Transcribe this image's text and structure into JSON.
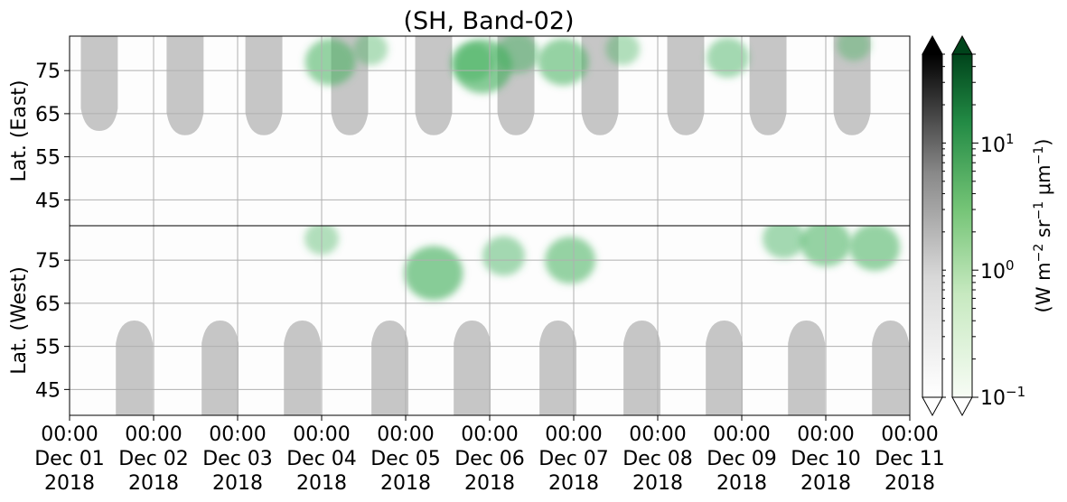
{
  "chart_data": {
    "type": "heatmap",
    "title": "(SH, Band-02)",
    "panels": [
      {
        "name": "east",
        "ylabel": "Lat. (East)",
        "yticks": [
          45,
          55,
          65,
          75
        ],
        "ylim": [
          39,
          83
        ]
      },
      {
        "name": "west",
        "ylabel": "Lat. (West)",
        "yticks": [
          75,
          65,
          55,
          45
        ],
        "ylim": [
          83,
          39
        ]
      }
    ],
    "xticks": [
      {
        "time": "00:00",
        "date": "Dec 01",
        "year": "2018"
      },
      {
        "time": "00:00",
        "date": "Dec 02",
        "year": "2018"
      },
      {
        "time": "00:00",
        "date": "Dec 03",
        "year": "2018"
      },
      {
        "time": "00:00",
        "date": "Dec 04",
        "year": "2018"
      },
      {
        "time": "00:00",
        "date": "Dec 05",
        "year": "2018"
      },
      {
        "time": "00:00",
        "date": "Dec 06",
        "year": "2018"
      },
      {
        "time": "00:00",
        "date": "Dec 07",
        "year": "2018"
      },
      {
        "time": "00:00",
        "date": "Dec 08",
        "year": "2018"
      },
      {
        "time": "00:00",
        "date": "Dec 09",
        "year": "2018"
      },
      {
        "time": "00:00",
        "date": "Dec 10",
        "year": "2018"
      },
      {
        "time": "00:00",
        "date": "Dec 11",
        "year": "2018"
      }
    ],
    "xlim": [
      "2018-12-01 00:00",
      "2018-12-11 00:00"
    ],
    "grid": true,
    "sunlit_gaps": {
      "east": [
        {
          "center": "2018-12-01 08:30",
          "min_lat": 61
        },
        {
          "center": "2018-12-02 09:00",
          "min_lat": 60
        },
        {
          "center": "2018-12-03 07:30",
          "min_lat": 60
        },
        {
          "center": "2018-12-04 08:00",
          "min_lat": 60
        },
        {
          "center": "2018-12-05 08:00",
          "min_lat": 60
        },
        {
          "center": "2018-12-06 07:30",
          "min_lat": 60
        },
        {
          "center": "2018-12-07 07:30",
          "min_lat": 60
        },
        {
          "center": "2018-12-08 08:00",
          "min_lat": 60
        },
        {
          "center": "2018-12-09 07:30",
          "min_lat": 60
        },
        {
          "center": "2018-12-10 07:30",
          "min_lat": 60
        }
      ],
      "west": [
        {
          "center": "2018-12-01 18:30",
          "min_lat": 61
        },
        {
          "center": "2018-12-02 19:00",
          "min_lat": 61
        },
        {
          "center": "2018-12-03 18:30",
          "min_lat": 61
        },
        {
          "center": "2018-12-04 19:30",
          "min_lat": 61
        },
        {
          "center": "2018-12-05 19:00",
          "min_lat": 61
        },
        {
          "center": "2018-12-06 19:30",
          "min_lat": 61
        },
        {
          "center": "2018-12-07 19:30",
          "min_lat": 61
        },
        {
          "center": "2018-12-08 19:00",
          "min_lat": 61
        },
        {
          "center": "2018-12-09 18:30",
          "min_lat": 61
        },
        {
          "center": "2018-12-10 18:30",
          "min_lat": 61
        }
      ]
    },
    "aurora_patches": [
      {
        "panel": "east",
        "time": "2018-12-04 02:30",
        "lat": 77,
        "intensity": 2.0
      },
      {
        "panel": "east",
        "time": "2018-12-04 14:00",
        "lat": 80,
        "intensity": 1.0
      },
      {
        "panel": "east",
        "time": "2018-12-05 19:00",
        "lat": 77,
        "intensity": 1.5
      },
      {
        "panel": "east",
        "time": "2018-12-05 22:00",
        "lat": 76,
        "intensity": 2.5
      },
      {
        "panel": "east",
        "time": "2018-12-06 08:00",
        "lat": 79,
        "intensity": 1.5
      },
      {
        "panel": "east",
        "time": "2018-12-06 21:00",
        "lat": 77,
        "intensity": 2.0
      },
      {
        "panel": "east",
        "time": "2018-12-07 14:00",
        "lat": 80,
        "intensity": 1.0
      },
      {
        "panel": "east",
        "time": "2018-12-08 20:00",
        "lat": 78,
        "intensity": 1.5
      },
      {
        "panel": "east",
        "time": "2018-12-10 08:00",
        "lat": 81,
        "intensity": 1.0
      },
      {
        "panel": "west",
        "time": "2018-12-04 00:00",
        "lat": 80,
        "intensity": 1.0
      },
      {
        "panel": "west",
        "time": "2018-12-05 08:00",
        "lat": 72,
        "intensity": 2.5
      },
      {
        "panel": "west",
        "time": "2018-12-06 04:00",
        "lat": 76,
        "intensity": 1.5
      },
      {
        "panel": "west",
        "time": "2018-12-06 23:00",
        "lat": 75,
        "intensity": 2.0
      },
      {
        "panel": "west",
        "time": "2018-12-09 12:00",
        "lat": 80,
        "intensity": 1.5
      },
      {
        "panel": "west",
        "time": "2018-12-10 00:00",
        "lat": 79,
        "intensity": 2.0
      },
      {
        "panel": "west",
        "time": "2018-12-10 14:00",
        "lat": 78,
        "intensity": 2.0
      }
    ],
    "colorbar_gray": {
      "colormap": "Greys",
      "extend": "both"
    },
    "colorbar_green": {
      "colormap": "Greens",
      "scale": "log",
      "range": [
        0.1,
        50
      ],
      "ticks": [
        {
          "base": "10",
          "exp": "1"
        },
        {
          "base": "10",
          "exp": "0"
        },
        {
          "base": "10",
          "exp": "−1"
        }
      ],
      "extend": "both"
    },
    "colorbar_label": {
      "open": "(W m",
      "exp1": "−2",
      "mid1": " sr",
      "exp2": "−1",
      "mid2": " μm",
      "exp3": "−1",
      "close": ")"
    },
    "colors": {
      "gap_gray": "#c6c6c6",
      "background": "#ffffff",
      "aurora_green": "#3fae5a",
      "grid": "#b0b0b0"
    }
  }
}
